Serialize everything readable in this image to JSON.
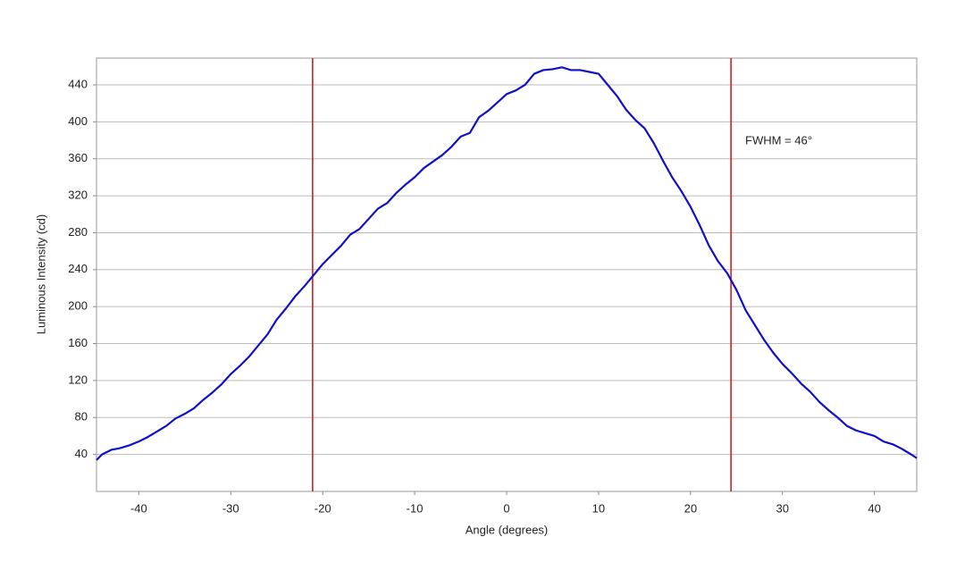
{
  "chart_data": {
    "type": "line",
    "xlabel": "Angle (degrees)",
    "ylabel": "Luminous Intensity (cd)",
    "annotation": "FWHM = 46°",
    "xlim": [
      -44.6,
      44.6
    ],
    "ylim": [
      0,
      469
    ],
    "xticks": [
      -40,
      -30,
      -20,
      -10,
      0,
      10,
      20,
      30,
      40
    ],
    "yticks": [
      40,
      80,
      120,
      160,
      200,
      240,
      280,
      320,
      360,
      400,
      440
    ],
    "grid": true,
    "vlines": {
      "color": "#d42020",
      "x": [
        -21.1,
        24.4
      ]
    },
    "series": [
      {
        "color": "#1010c8",
        "x": [
          -44.6,
          -44,
          -43,
          -42,
          -41,
          -40,
          -39,
          -38,
          -37,
          -36,
          -35,
          -34,
          -33,
          -32,
          -31,
          -30,
          -29,
          -28,
          -27,
          -26,
          -25,
          -24,
          -23,
          -22,
          -21,
          -20,
          -19,
          -18,
          -17,
          -16,
          -15,
          -14,
          -13,
          -12,
          -11,
          -10,
          -9,
          -8,
          -7,
          -6,
          -5,
          -4,
          -3,
          -2,
          -1,
          0,
          1,
          2,
          3,
          4,
          5,
          6,
          7,
          8,
          9,
          10,
          11,
          12,
          13,
          14,
          15,
          16,
          17,
          18,
          19,
          20,
          21,
          22,
          23,
          24,
          25,
          26,
          27,
          28,
          29,
          30,
          31,
          32,
          33,
          34,
          35,
          36,
          37,
          38,
          39,
          40,
          41,
          42,
          43,
          44,
          44.6
        ],
        "values": [
          34,
          40,
          45,
          47,
          50,
          54,
          59,
          65,
          71,
          79,
          84,
          90,
          99,
          107,
          116,
          127,
          136,
          146,
          158,
          170,
          186,
          198,
          211,
          222,
          234,
          246,
          256,
          266,
          278,
          284,
          295,
          306,
          312,
          323,
          332,
          340,
          350,
          357,
          364,
          373,
          384,
          388,
          405,
          412,
          421,
          430,
          434,
          440,
          452,
          456,
          457,
          459,
          456,
          456,
          454,
          452,
          440,
          428,
          413,
          402,
          393,
          377,
          358,
          340,
          325,
          308,
          288,
          266,
          249,
          236,
          218,
          196,
          180,
          164,
          150,
          138,
          128,
          117,
          108,
          97,
          88,
          80,
          71,
          66,
          63,
          60,
          54,
          51,
          46,
          40,
          36
        ]
      }
    ]
  }
}
